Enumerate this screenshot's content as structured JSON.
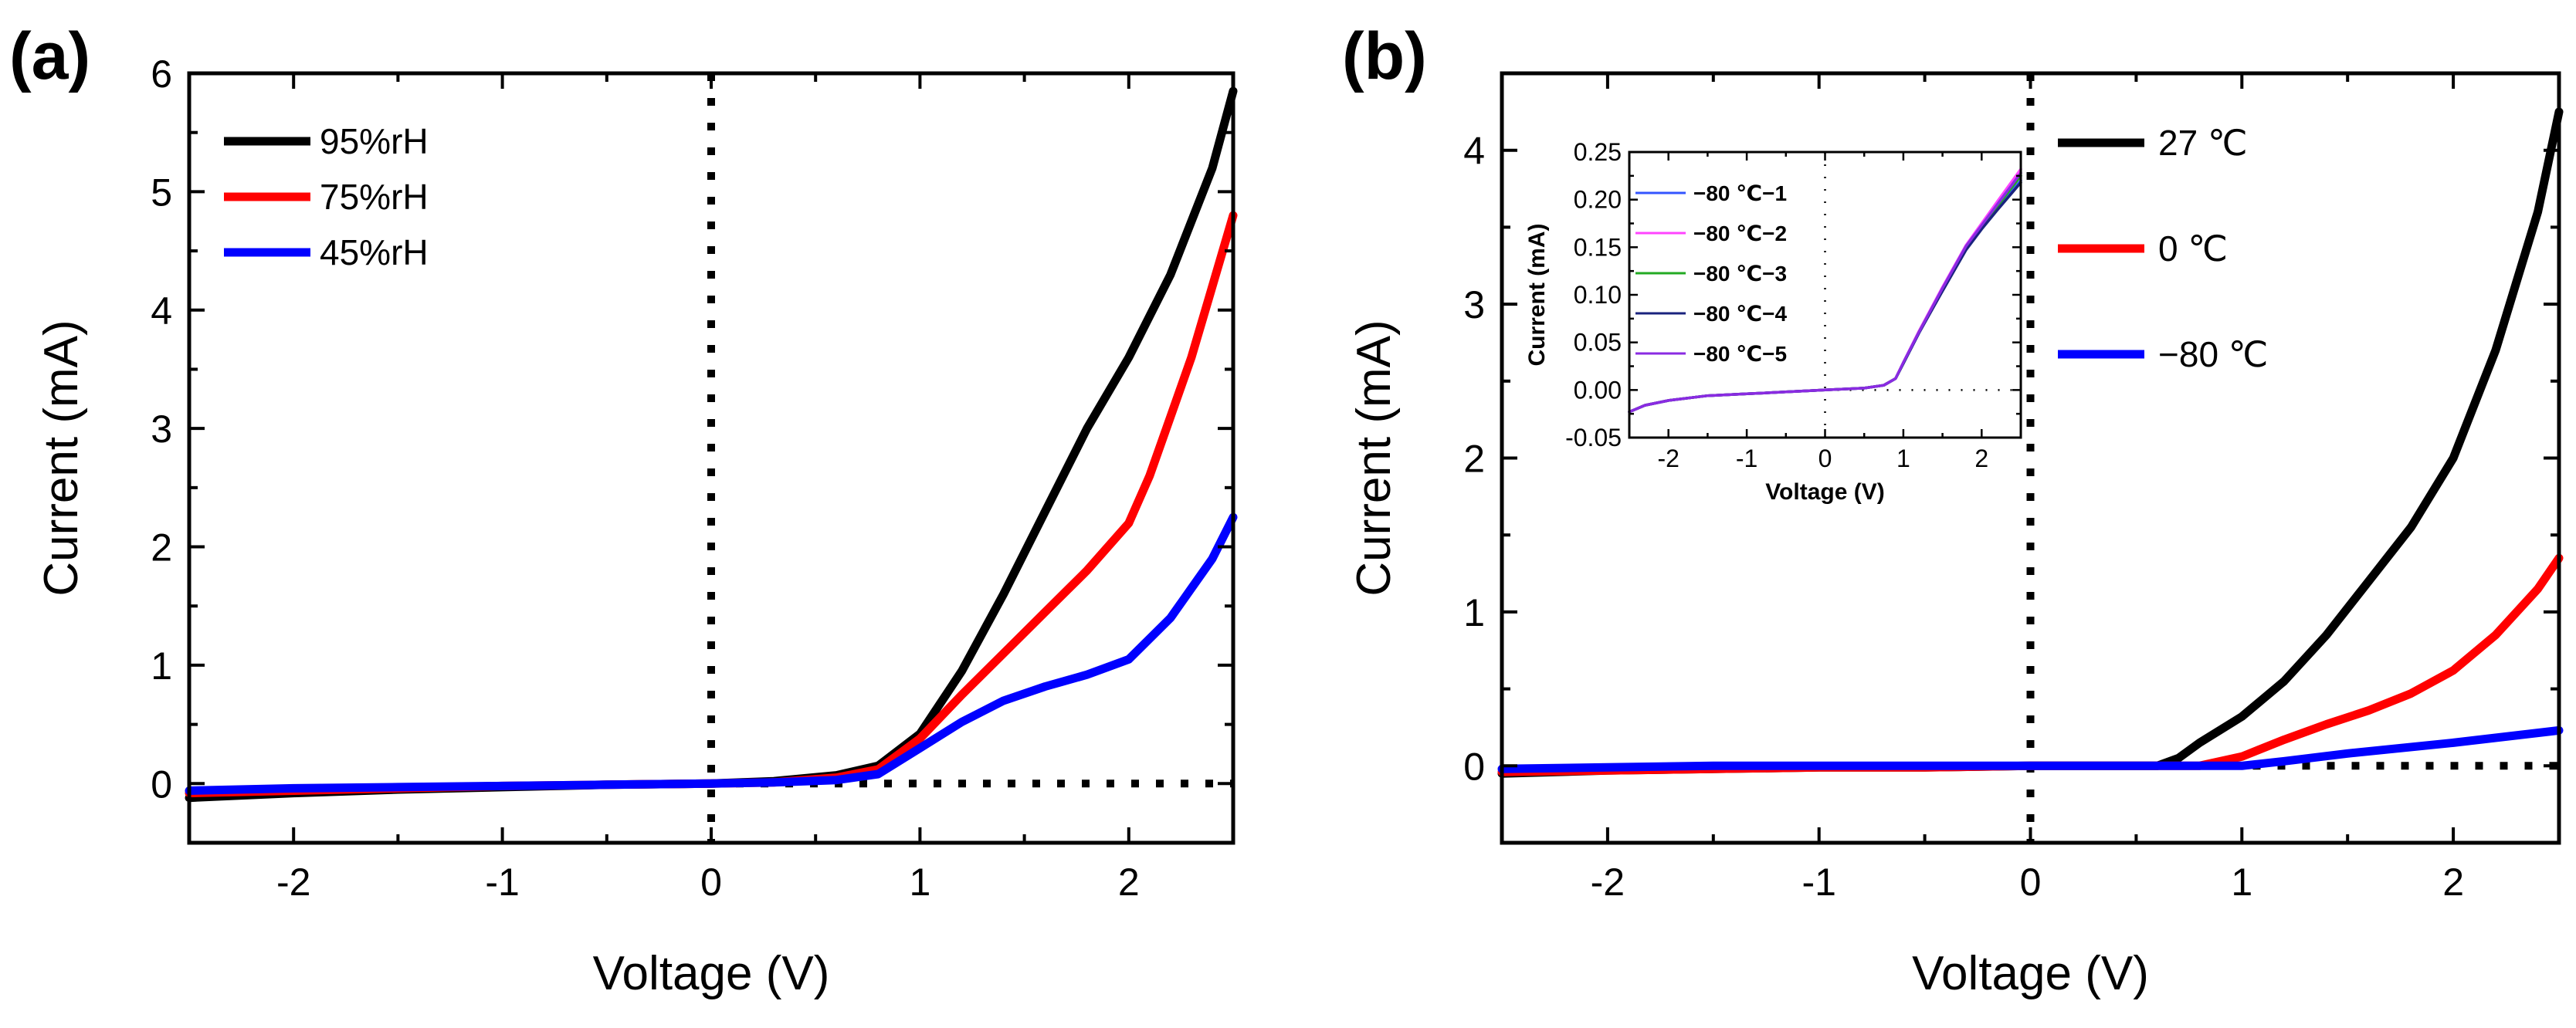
{
  "chart_data": [
    {
      "panel": "(a)",
      "type": "line",
      "xlabel": "Voltage (V)",
      "ylabel": "Current (mA)",
      "xlim": [
        -2.5,
        2.5
      ],
      "ylim": [
        -0.5,
        6
      ],
      "xticks": [
        -2,
        -1,
        0,
        1,
        2
      ],
      "xtick_labels": [
        "-2",
        "-1",
        "0",
        "1",
        "2"
      ],
      "yticks": [
        0,
        1,
        2,
        3,
        4,
        5,
        6
      ],
      "ytick_labels": [
        "0",
        "1",
        "2",
        "3",
        "4",
        "5",
        "6"
      ],
      "legend_position": "top-left",
      "reference_lines": {
        "vertical_x": 0,
        "horizontal_y": 0,
        "style": "dotted"
      },
      "series": [
        {
          "name": "95%rH",
          "color": "#000000",
          "x": [
            -2.5,
            -2,
            -1.5,
            -1,
            -0.5,
            0,
            0.3,
            0.6,
            0.8,
            1.0,
            1.2,
            1.4,
            1.6,
            1.8,
            2.0,
            2.2,
            2.4,
            2.5
          ],
          "y": [
            -0.12,
            -0.08,
            -0.05,
            -0.03,
            -0.01,
            0,
            0.02,
            0.07,
            0.15,
            0.42,
            0.95,
            1.6,
            2.3,
            3.0,
            3.6,
            4.3,
            5.2,
            5.85
          ]
        },
        {
          "name": "75%rH",
          "color": "#ff0000",
          "x": [
            -2.5,
            -2,
            -1.5,
            -1,
            -0.5,
            0,
            0.3,
            0.6,
            0.8,
            1.0,
            1.2,
            1.4,
            1.6,
            1.8,
            2.0,
            2.1,
            2.2,
            2.3,
            2.4,
            2.5
          ],
          "y": [
            -0.08,
            -0.06,
            -0.04,
            -0.02,
            -0.01,
            0,
            0.01,
            0.05,
            0.12,
            0.38,
            0.75,
            1.1,
            1.45,
            1.8,
            2.2,
            2.6,
            3.1,
            3.6,
            4.2,
            4.8
          ]
        },
        {
          "name": "45%rH",
          "color": "#0000ff",
          "x": [
            -2.5,
            -2,
            -1.5,
            -1,
            -0.5,
            0,
            0.3,
            0.6,
            0.8,
            1.0,
            1.2,
            1.4,
            1.6,
            1.8,
            2.0,
            2.2,
            2.4,
            2.5
          ],
          "y": [
            -0.06,
            -0.04,
            -0.03,
            -0.02,
            -0.01,
            0,
            0.01,
            0.03,
            0.08,
            0.3,
            0.52,
            0.7,
            0.82,
            0.92,
            1.05,
            1.4,
            1.9,
            2.25
          ]
        }
      ]
    },
    {
      "panel": "(b)",
      "type": "line",
      "xlabel": "Voltage (V)",
      "ylabel": "Current (mA)",
      "xlim": [
        -2.5,
        2.5
      ],
      "ylim": [
        -0.5,
        4.5
      ],
      "xticks": [
        -2,
        -1,
        0,
        1,
        2
      ],
      "xtick_labels": [
        "-2",
        "-1",
        "0",
        "1",
        "2"
      ],
      "yticks": [
        0,
        1,
        2,
        3,
        4
      ],
      "ytick_labels": [
        "0",
        "1",
        "2",
        "3",
        "4"
      ],
      "legend_position": "top-right",
      "reference_lines": {
        "vertical_x": 0,
        "horizontal_y": 0,
        "style": "dotted"
      },
      "series": [
        {
          "name": "27 ℃",
          "color": "#000000",
          "x": [
            -2.5,
            -2,
            -1.5,
            -1,
            -0.5,
            0,
            0.3,
            0.6,
            0.7,
            0.8,
            1.0,
            1.2,
            1.4,
            1.6,
            1.8,
            2.0,
            2.2,
            2.4,
            2.5
          ],
          "y": [
            -0.05,
            -0.03,
            -0.02,
            -0.01,
            -0.01,
            0,
            0,
            0,
            0.05,
            0.15,
            0.32,
            0.55,
            0.85,
            1.2,
            1.55,
            2.0,
            2.7,
            3.6,
            4.25
          ]
        },
        {
          "name": "0 ℃",
          "color": "#ff0000",
          "x": [
            -2.5,
            -2,
            -1.5,
            -1,
            -0.5,
            0,
            0.5,
            0.8,
            1.0,
            1.2,
            1.4,
            1.6,
            1.8,
            2.0,
            2.2,
            2.4,
            2.5
          ],
          "y": [
            -0.04,
            -0.03,
            -0.02,
            -0.01,
            -0.01,
            0,
            0,
            0,
            0.06,
            0.17,
            0.27,
            0.36,
            0.47,
            0.62,
            0.85,
            1.15,
            1.35
          ]
        },
        {
          "name": "−80 ℃",
          "color": "#0000ff",
          "x": [
            -2.5,
            -2,
            -1.5,
            -1,
            -0.5,
            0,
            0.5,
            1.0,
            1.2,
            1.5,
            2.0,
            2.5
          ],
          "y": [
            -0.02,
            -0.01,
            0,
            0,
            0,
            0,
            0,
            0,
            0.03,
            0.08,
            0.15,
            0.23
          ]
        }
      ],
      "inset": {
        "type": "line",
        "xlabel": "Voltage (V)",
        "ylabel": "Current (mA)",
        "xlim": [
          -2.5,
          2.5
        ],
        "ylim": [
          -0.05,
          0.25
        ],
        "xticks": [
          -2,
          -1,
          0,
          1,
          2
        ],
        "xtick_labels": [
          "-2",
          "-1",
          "0",
          "1",
          "2"
        ],
        "yticks": [
          -0.05,
          0,
          0.05,
          0.1,
          0.15,
          0.2,
          0.25
        ],
        "ytick_labels": [
          "-0.05",
          "0.00",
          "0.05",
          "0.10",
          "0.15",
          "0.20",
          "0.25"
        ],
        "legend_position": "top-left",
        "x": [
          -2.5,
          -2.3,
          -2,
          -1.5,
          -1,
          -0.5,
          0,
          0.5,
          0.75,
          0.9,
          1.0,
          1.2,
          1.5,
          1.8,
          2.0,
          2.2,
          2.5
        ],
        "series": [
          {
            "name": "−80 ℃−1",
            "color": "#3355ff",
            "y": [
              -0.023,
              -0.016,
              -0.011,
              -0.006,
              -0.004,
              -0.002,
              0.0,
              0.002,
              0.005,
              0.012,
              0.028,
              0.06,
              0.105,
              0.148,
              0.17,
              0.19,
              0.22
            ]
          },
          {
            "name": "−80 ℃−2",
            "color": "#ff44ff",
            "y": [
              -0.023,
              -0.016,
              -0.011,
              -0.006,
              -0.004,
              -0.002,
              0.0,
              0.002,
              0.005,
              0.012,
              0.029,
              0.062,
              0.108,
              0.152,
              0.175,
              0.198,
              0.232
            ]
          },
          {
            "name": "−80 ℃−3",
            "color": "#22aa22",
            "y": [
              -0.023,
              -0.016,
              -0.011,
              -0.006,
              -0.004,
              -0.002,
              0.0,
              0.002,
              0.005,
              0.012,
              0.028,
              0.061,
              0.106,
              0.15,
              0.172,
              0.193,
              0.225
            ]
          },
          {
            "name": "−80 ℃−4",
            "color": "#1a237e",
            "y": [
              -0.023,
              -0.016,
              -0.011,
              -0.006,
              -0.004,
              -0.002,
              0.0,
              0.002,
              0.005,
              0.012,
              0.028,
              0.06,
              0.104,
              0.147,
              0.169,
              0.189,
              0.218
            ]
          },
          {
            "name": "−80 ℃−5",
            "color": "#8a2be2",
            "y": [
              -0.023,
              -0.016,
              -0.011,
              -0.006,
              -0.004,
              -0.002,
              0.0,
              0.002,
              0.005,
              0.012,
              0.029,
              0.061,
              0.107,
              0.151,
              0.173,
              0.195,
              0.228
            ]
          }
        ]
      }
    }
  ]
}
